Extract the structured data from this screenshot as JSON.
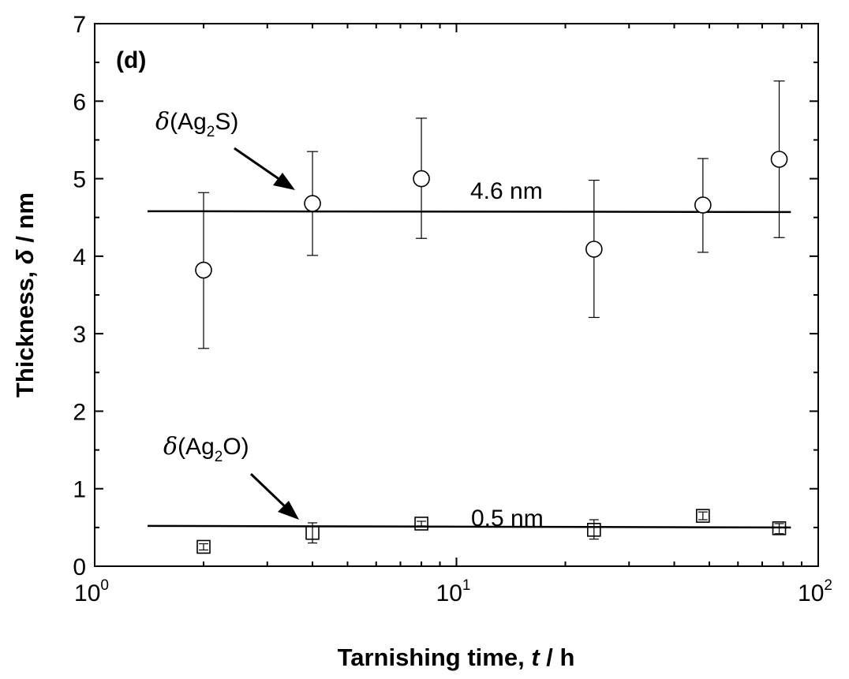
{
  "chart_data": {
    "type": "scatter",
    "panel_label": "(d)",
    "xlabel": {
      "prefix": "Tarnishing time, ",
      "var": "t",
      "suffix": " / h"
    },
    "ylabel": {
      "prefix": "Thickness, ",
      "var": "δ",
      "suffix": " / nm"
    },
    "x_scale": "log",
    "xlim": [
      1,
      100
    ],
    "ylim": [
      0,
      7
    ],
    "x_ticks": [
      {
        "base": "10",
        "exp": "0"
      },
      {
        "base": "10",
        "exp": "1"
      },
      {
        "base": "10",
        "exp": "2"
      }
    ],
    "y_ticks": [
      "0",
      "1",
      "2",
      "3",
      "4",
      "5",
      "6",
      "7"
    ],
    "grid": false,
    "series": [
      {
        "label": {
          "delta": "δ",
          "open": "(Ag",
          "sub": "2",
          "close": "S)"
        },
        "marker": "circle",
        "x": [
          2,
          4,
          8,
          24,
          48,
          78
        ],
        "y": [
          3.82,
          4.68,
          5.0,
          4.09,
          4.66,
          5.25
        ],
        "err_high": [
          4.82,
          5.35,
          5.78,
          4.98,
          5.26,
          6.26
        ],
        "err_low": [
          2.81,
          4.01,
          4.23,
          3.21,
          4.05,
          4.24
        ],
        "fit": {
          "value": 4.6,
          "x_range": [
            1.4,
            84
          ],
          "y_start": 4.58,
          "y_end": 4.57,
          "label": "4.6 nm"
        }
      },
      {
        "label": {
          "delta": "δ",
          "open": "(Ag",
          "sub": "2",
          "close": "O)"
        },
        "marker": "square",
        "x": [
          2,
          4,
          8,
          24,
          48,
          78
        ],
        "y": [
          0.25,
          0.43,
          0.55,
          0.47,
          0.65,
          0.49
        ],
        "err_high": [
          0.29,
          0.56,
          0.58,
          0.6,
          0.7,
          0.55
        ],
        "err_low": [
          0.21,
          0.3,
          0.52,
          0.35,
          0.6,
          0.42
        ],
        "fit": {
          "value": 0.5,
          "x_range": [
            1.4,
            84
          ],
          "y_start": 0.52,
          "y_end": 0.5,
          "label": "0.5 nm"
        }
      }
    ]
  }
}
